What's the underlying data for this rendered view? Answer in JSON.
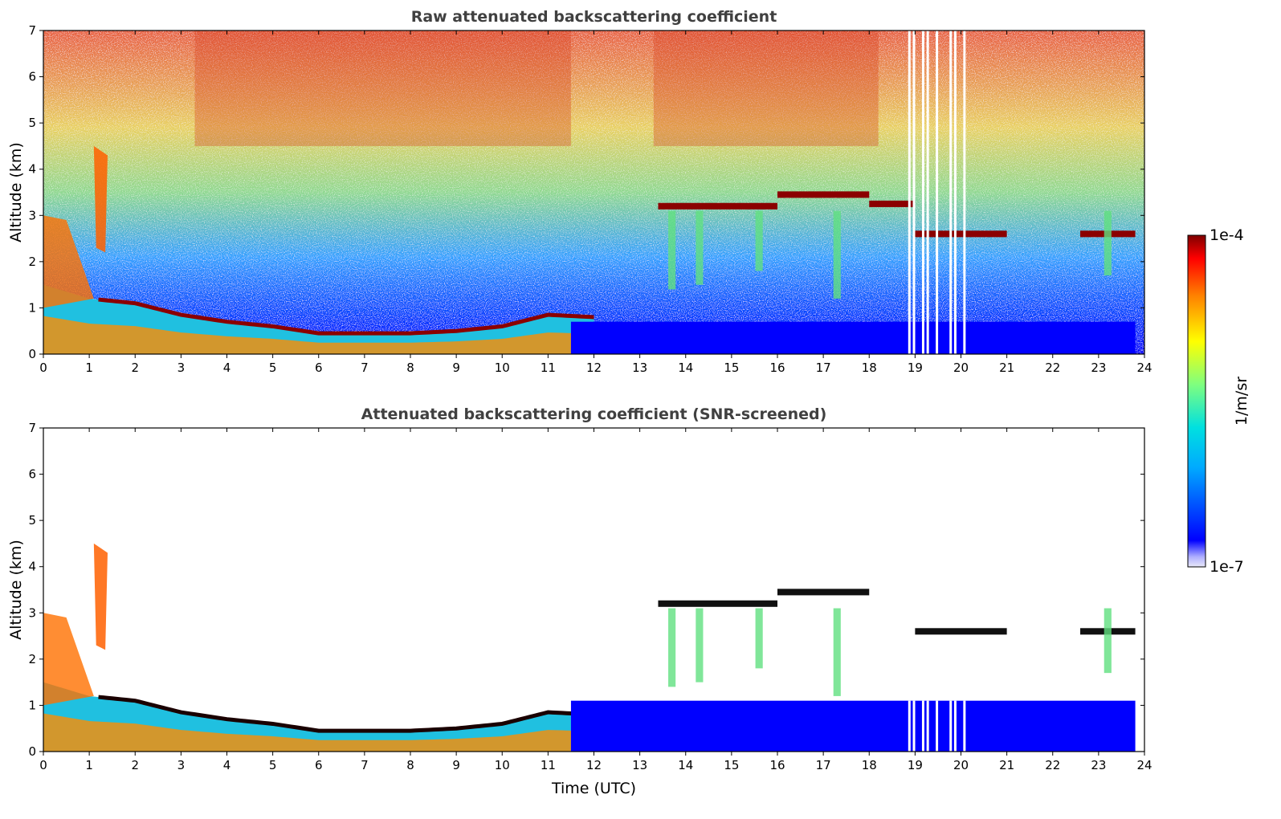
{
  "chart_data": [
    {
      "type": "heatmap",
      "title": "Raw attenuated backscattering coefficient",
      "xlabel": "",
      "ylabel": "Altitude (km)",
      "xlim": [
        0,
        24
      ],
      "ylim": [
        0,
        7
      ],
      "xticks": [
        "0",
        "1",
        "2",
        "3",
        "4",
        "5",
        "6",
        "7",
        "8",
        "9",
        "10",
        "11",
        "12",
        "13",
        "14",
        "15",
        "16",
        "17",
        "18",
        "19",
        "20",
        "21",
        "22",
        "23",
        "24"
      ],
      "yticks": [
        "0",
        "1",
        "2",
        "3",
        "4",
        "5",
        "6",
        "7"
      ],
      "colormap": "jet",
      "color_scale": "log",
      "features": {
        "low_aerosol_layer_top_km": [
          [
            0,
            1.5
          ],
          [
            1,
            1.2
          ],
          [
            2,
            1.1
          ],
          [
            3,
            0.85
          ],
          [
            4,
            0.7
          ],
          [
            5,
            0.6
          ],
          [
            6,
            0.45
          ],
          [
            7,
            0.45
          ],
          [
            8,
            0.45
          ],
          [
            9,
            0.5
          ],
          [
            10,
            0.6
          ],
          [
            11,
            0.85
          ],
          [
            12,
            0.8
          ]
        ],
        "cloud_layers": [
          {
            "t_start": 13.4,
            "t_end": 16.0,
            "alt_km": 3.2
          },
          {
            "t_start": 16.0,
            "t_end": 18.0,
            "alt_km": 3.45
          },
          {
            "t_start": 18.0,
            "t_end": 19.0,
            "alt_km": 3.25
          },
          {
            "t_start": 19.0,
            "t_end": 21.0,
            "alt_km": 2.6
          },
          {
            "t_start": 22.6,
            "t_end": 23.8,
            "alt_km": 2.6
          }
        ],
        "missing_profiles_utc": [
          18.85,
          18.95,
          19.15,
          19.25,
          19.45,
          19.75,
          19.85,
          20.05
        ]
      }
    },
    {
      "type": "heatmap",
      "title": "Attenuated backscattering coefficient (SNR-screened)",
      "xlabel": "Time (UTC)",
      "ylabel": "Altitude (km)",
      "xlim": [
        0,
        24
      ],
      "ylim": [
        0,
        7
      ],
      "xticks": [
        "0",
        "1",
        "2",
        "3",
        "4",
        "5",
        "6",
        "7",
        "8",
        "9",
        "10",
        "11",
        "12",
        "13",
        "14",
        "15",
        "16",
        "17",
        "18",
        "19",
        "20",
        "21",
        "22",
        "23",
        "24"
      ],
      "yticks": [
        "0",
        "1",
        "2",
        "3",
        "4",
        "5",
        "6",
        "7"
      ],
      "colormap": "jet",
      "color_scale": "log",
      "features": {
        "screened_region": "noise above ~1 km removed",
        "cloud_layers": [
          {
            "t_start": 13.4,
            "t_end": 16.0,
            "alt_km": 3.2
          },
          {
            "t_start": 16.0,
            "t_end": 18.0,
            "alt_km": 3.45
          },
          {
            "t_start": 19.0,
            "t_end": 21.0,
            "alt_km": 2.6
          },
          {
            "t_start": 22.6,
            "t_end": 23.8,
            "alt_km": 2.6
          }
        ]
      }
    }
  ],
  "colorbar": {
    "label": "1/m/sr",
    "max_label": "1e-4",
    "min_label": "1e-7",
    "range": [
      1e-07,
      0.0001
    ],
    "scale": "log"
  },
  "colors": {
    "title": "#404040",
    "jet_dark_red": "#7f0000",
    "jet_blue": "#0000ff"
  }
}
